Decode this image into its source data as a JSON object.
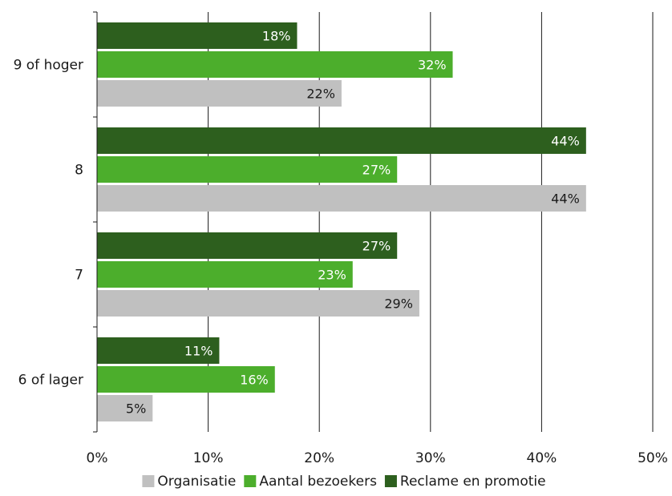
{
  "chart_data": {
    "type": "bar",
    "orientation": "horizontal",
    "categories": [
      "9 of hoger",
      "8",
      "7",
      "6 of lager"
    ],
    "series": [
      {
        "name": "Reclame en promotie",
        "color": "#2d5f1e",
        "label_color": "#ffffff",
        "values": [
          18,
          44,
          27,
          11
        ],
        "labels": [
          "18%",
          "44%",
          "27%",
          "11%"
        ]
      },
      {
        "name": "Aantal bezoekers",
        "color": "#4cae2c",
        "label_color": "#ffffff",
        "values": [
          32,
          27,
          23,
          16
        ],
        "labels": [
          "32%",
          "27%",
          "23%",
          "16%"
        ]
      },
      {
        "name": "Organisatie",
        "color": "#c0c0c0",
        "label_color": "#1a1a1a",
        "values": [
          22,
          44,
          29,
          5
        ],
        "labels": [
          "22%",
          "44%",
          "29%",
          "5%"
        ]
      }
    ],
    "xlim": [
      0,
      50
    ],
    "x_ticks": [
      0,
      10,
      20,
      30,
      40,
      50
    ],
    "x_tick_labels": [
      "0%",
      "10%",
      "20%",
      "30%",
      "40%",
      "50%"
    ],
    "legend": {
      "placement": "bottom",
      "order": [
        "Organisatie",
        "Aantal bezoekers",
        "Reclame en promotie"
      ]
    },
    "grid": "vertical",
    "title": "",
    "xlabel": "",
    "ylabel": ""
  }
}
